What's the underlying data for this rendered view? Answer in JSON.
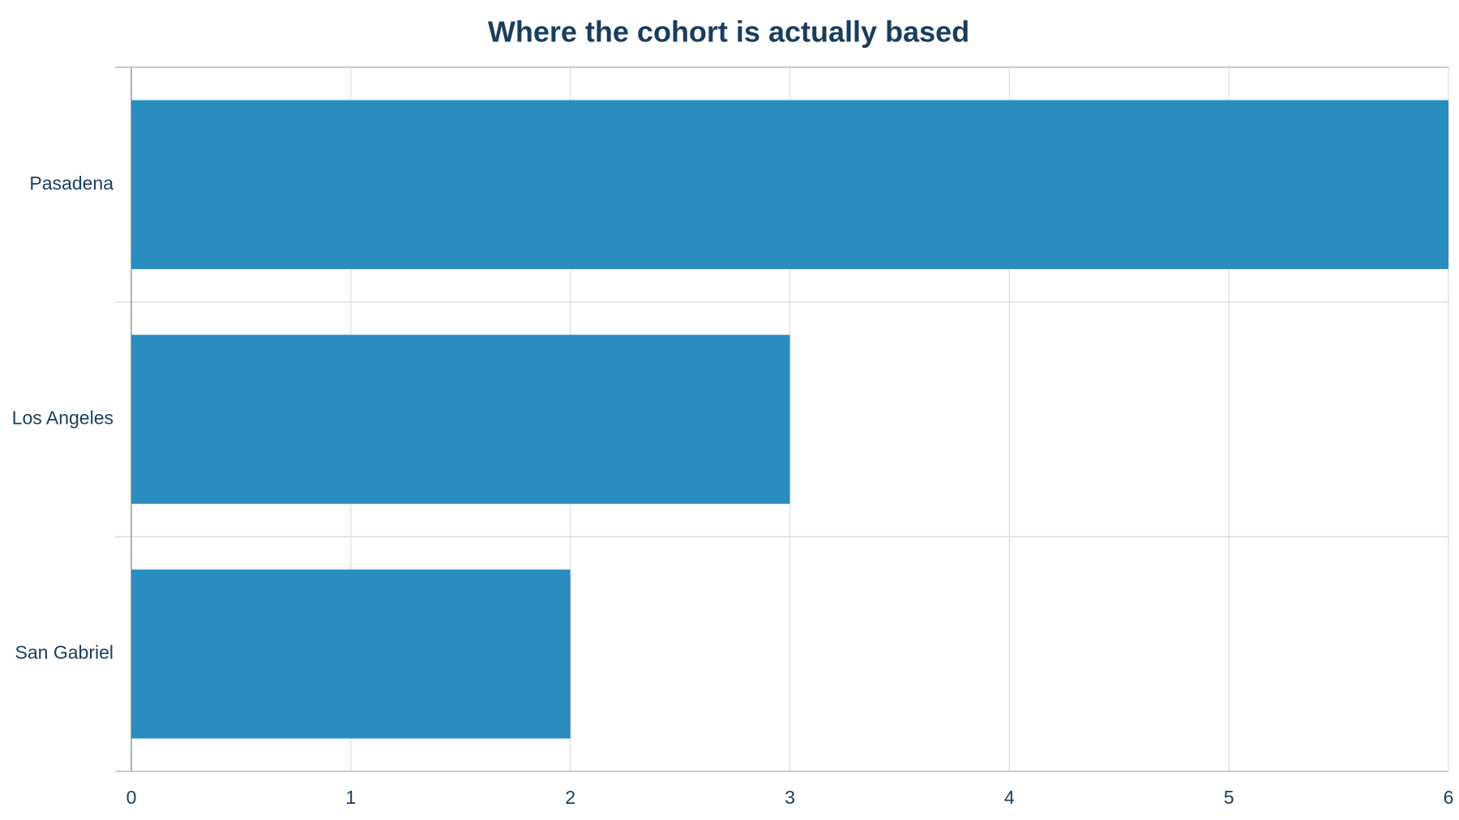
{
  "chart_data": {
    "type": "bar",
    "orientation": "horizontal",
    "title": "Where the cohort is actually based",
    "categories": [
      "Pasadena",
      "Los Angeles",
      "San Gabriel"
    ],
    "values": [
      6,
      3,
      2
    ],
    "color": "#2a8dc0",
    "xlim": [
      0,
      6
    ],
    "xticks": [
      0,
      1,
      2,
      3,
      4,
      5,
      6
    ],
    "grid": true
  }
}
